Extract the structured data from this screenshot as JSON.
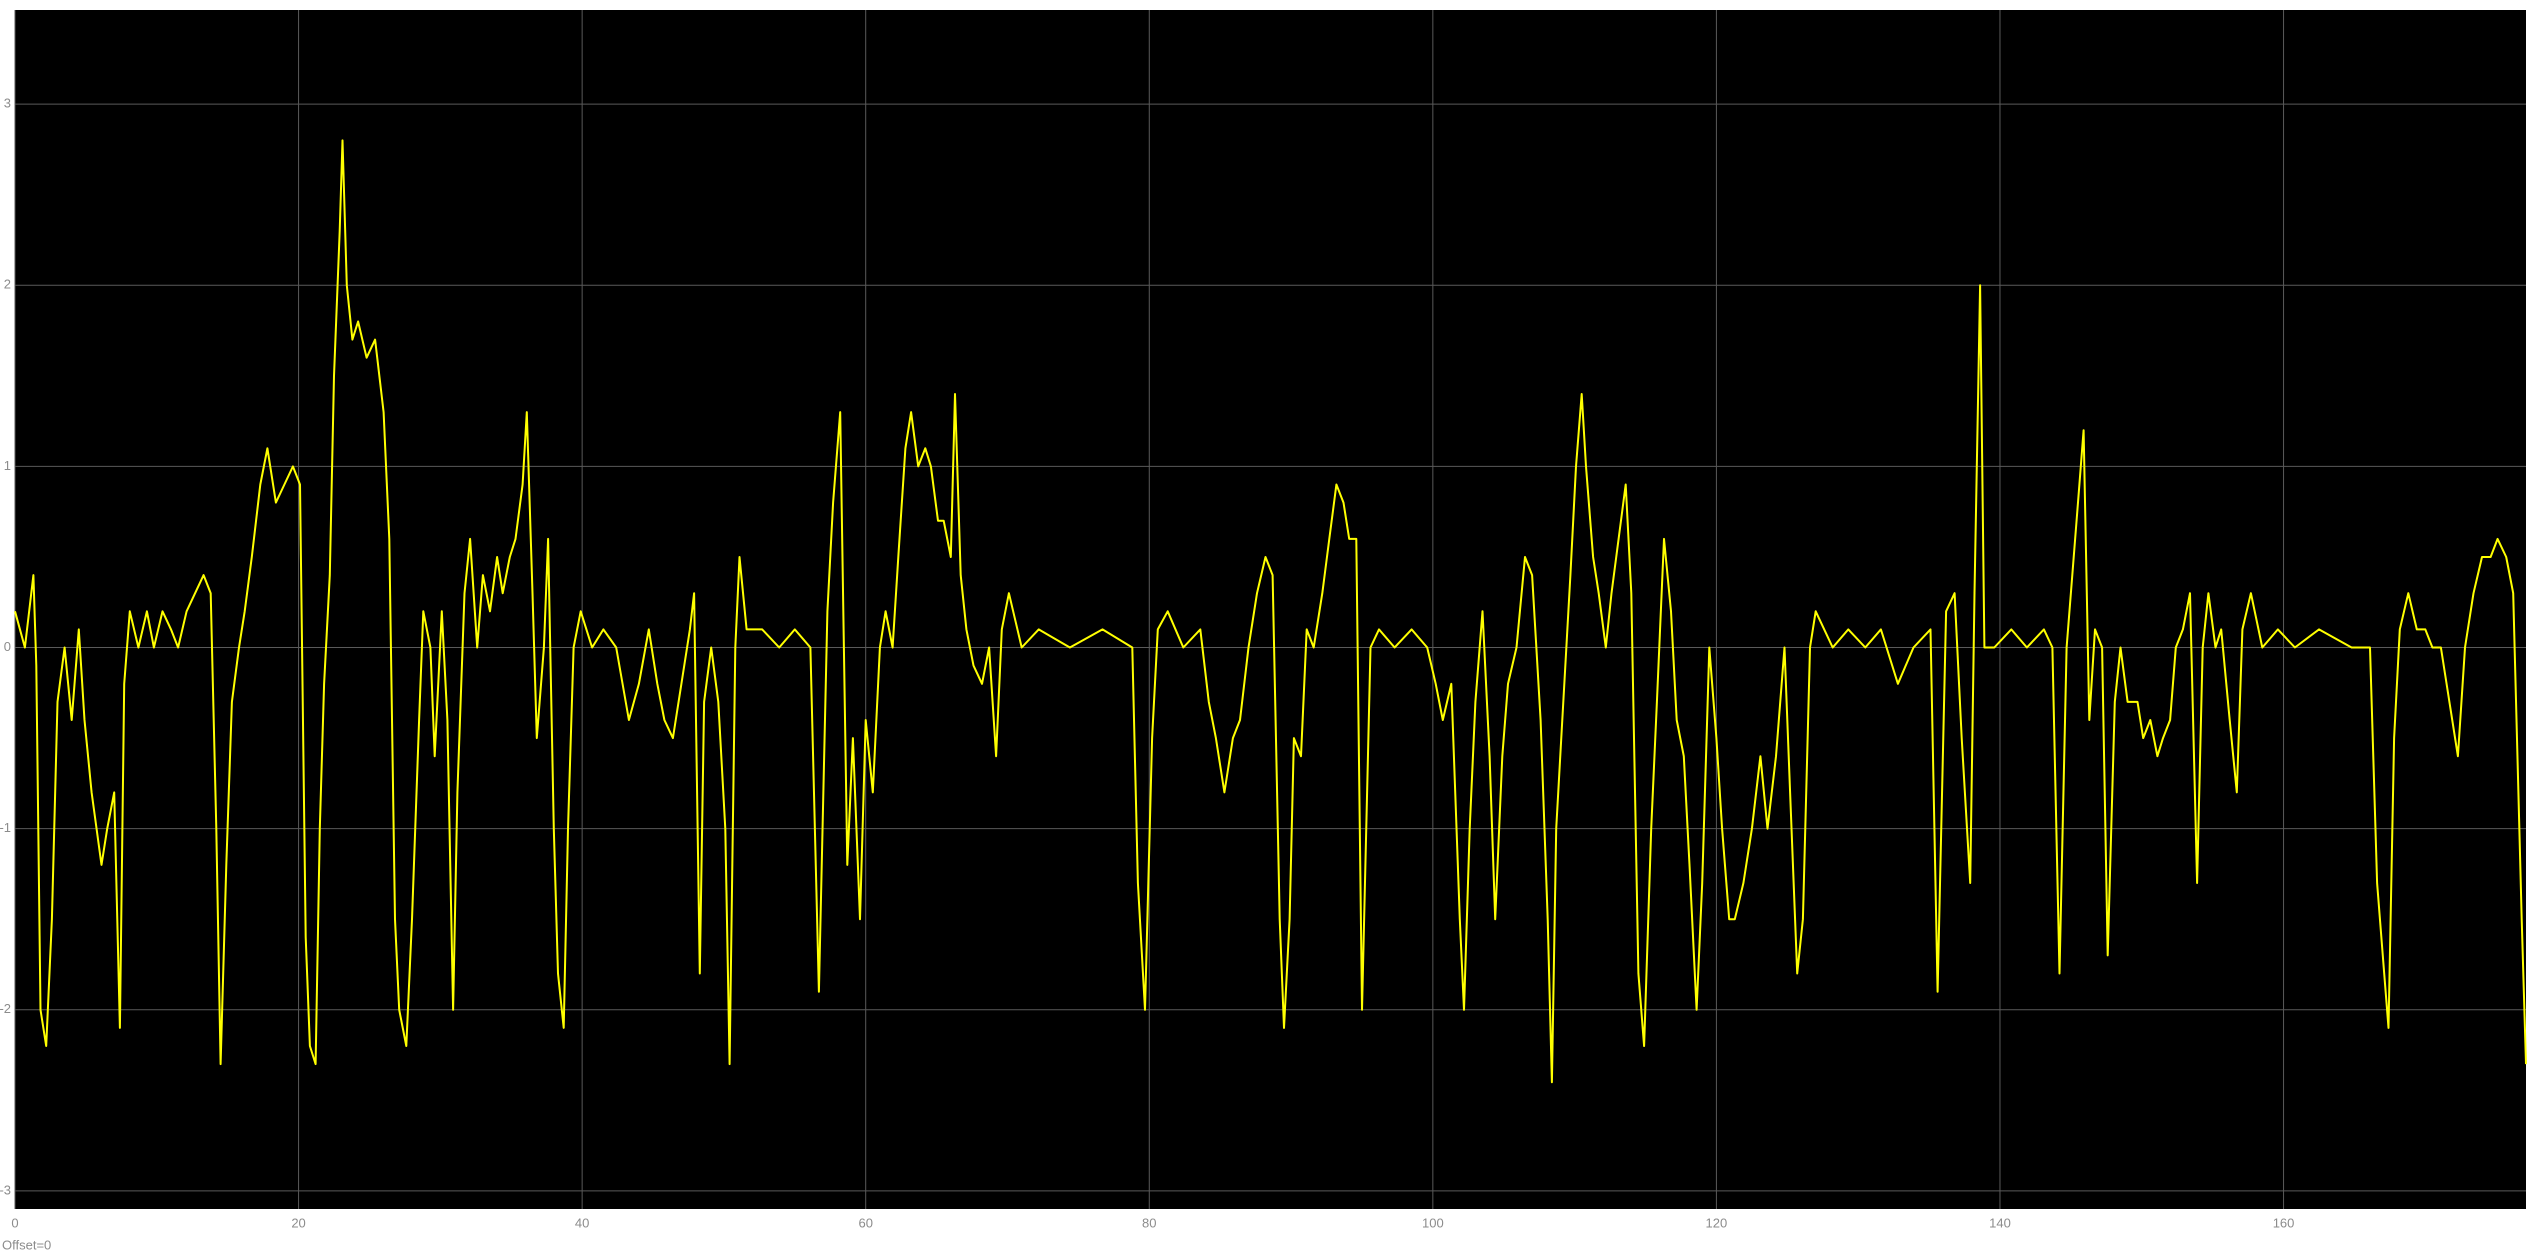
{
  "chart_data": {
    "type": "line",
    "annotation": "Offset=0",
    "color": "#ffff00",
    "grid": true,
    "xlim": [
      0,
      177.1
    ],
    "ylim": [
      -3.1,
      3.52
    ],
    "xticks": [
      0,
      20,
      40,
      60,
      80,
      100,
      120,
      140,
      160
    ],
    "yticks": [
      -3,
      -2,
      -1,
      0,
      1,
      2,
      3
    ],
    "x": [
      0,
      0.7,
      1.3,
      1.5,
      1.8,
      2.2,
      2.6,
      3.0,
      3.5,
      4.0,
      4.5,
      4.9,
      5.4,
      6.1,
      6.5,
      7.0,
      7.4,
      7.7,
      8.1,
      8.7,
      9.3,
      9.8,
      10.4,
      11.0,
      11.5,
      12.1,
      12.7,
      13.3,
      13.8,
      14.2,
      14.5,
      14.9,
      15.3,
      15.8,
      16.2,
      16.7,
      17.3,
      17.8,
      18.4,
      19.0,
      19.6,
      20.1,
      20.5,
      20.8,
      21.2,
      21.5,
      21.8,
      22.2,
      22.5,
      22.9,
      23.1,
      23.4,
      23.8,
      24.2,
      24.8,
      25.4,
      26.0,
      26.4,
      26.8,
      27.1,
      27.6,
      28.0,
      28.5,
      28.8,
      29.3,
      29.6,
      30.1,
      30.5,
      30.9,
      31.2,
      31.7,
      32.1,
      32.6,
      33.0,
      33.5,
      34.0,
      34.4,
      34.9,
      35.3,
      35.8,
      36.1,
      36.5,
      36.8,
      37.3,
      37.6,
      38.0,
      38.3,
      38.7,
      39.0,
      39.4,
      39.9,
      40.7,
      41.5,
      42.4,
      43.3,
      44.0,
      44.7,
      45.3,
      45.8,
      46.4,
      47.0,
      47.6,
      47.9,
      48.3,
      48.6,
      49.1,
      49.6,
      50.1,
      50.4,
      50.8,
      51.1,
      51.6,
      52.7,
      53.9,
      55.0,
      56.1,
      56.7,
      57.3,
      57.7,
      58.2,
      58.7,
      59.1,
      59.6,
      60.0,
      60.5,
      61.0,
      61.4,
      61.9,
      62.3,
      62.8,
      63.2,
      63.7,
      64.2,
      64.6,
      65.1,
      65.5,
      66.0,
      66.3,
      66.7,
      67.1,
      67.6,
      68.2,
      68.7,
      69.2,
      69.6,
      70.1,
      71.0,
      72.2,
      74.4,
      76.7,
      78.8,
      79.2,
      79.7,
      80.2,
      80.6,
      81.3,
      82.4,
      83.6,
      84.2,
      84.7,
      85.3,
      85.9,
      86.4,
      87.0,
      87.6,
      88.2,
      88.7,
      89.2,
      89.5,
      89.9,
      90.2,
      90.7,
      91.1,
      91.6,
      92.2,
      92.7,
      93.2,
      93.7,
      94.1,
      94.6,
      95.0,
      95.6,
      96.2,
      97.3,
      98.5,
      99.6,
      100.2,
      100.7,
      101.3,
      101.9,
      102.2,
      102.6,
      103.0,
      103.5,
      104.0,
      104.4,
      104.9,
      105.3,
      105.9,
      106.5,
      107.0,
      107.6,
      108.1,
      108.4,
      108.7,
      109.2,
      109.7,
      110.1,
      110.5,
      110.8,
      111.3,
      111.7,
      112.2,
      112.6,
      113.1,
      113.6,
      114.0,
      114.5,
      114.9,
      115.4,
      115.8,
      116.3,
      116.8,
      117.2,
      117.7,
      118.1,
      118.6,
      119.0,
      119.5,
      120.0,
      120.4,
      120.9,
      121.3,
      121.9,
      122.5,
      123.1,
      123.6,
      124.2,
      124.8,
      125.2,
      125.7,
      126.1,
      126.6,
      127.0,
      128.2,
      129.3,
      130.5,
      131.6,
      132.8,
      133.9,
      135.1,
      135.6,
      136.2,
      136.8,
      137.3,
      137.9,
      138.2,
      138.6,
      138.9,
      139.6,
      140.8,
      141.9,
      143.1,
      143.7,
      144.2,
      144.7,
      145.1,
      145.6,
      145.9,
      146.3,
      146.7,
      147.2,
      147.6,
      148.1,
      148.5,
      149.0,
      149.7,
      150.1,
      150.6,
      151.1,
      151.5,
      152.0,
      152.4,
      152.9,
      153.4,
      153.9,
      154.3,
      154.7,
      155.2,
      155.6,
      156.2,
      156.7,
      157.1,
      157.7,
      158.5,
      159.6,
      160.8,
      162.5,
      164.8,
      166.1,
      166.6,
      167.1,
      167.4,
      167.8,
      168.2,
      168.8,
      169.4,
      170.0,
      170.5,
      171.1,
      171.7,
      172.3,
      172.8,
      173.4,
      174.0,
      174.6,
      175.1,
      175.7,
      176.2,
      176.8,
      177.1
    ],
    "values": [
      0.2,
      0.0,
      0.4,
      -0.1,
      -2.0,
      -2.2,
      -1.5,
      -0.3,
      0.0,
      -0.4,
      0.1,
      -0.4,
      -0.8,
      -1.2,
      -1.0,
      -0.8,
      -2.1,
      -0.2,
      0.2,
      0.0,
      0.2,
      0.0,
      0.2,
      0.1,
      0.0,
      0.2,
      0.3,
      0.4,
      0.3,
      -1.0,
      -2.3,
      -1.2,
      -0.3,
      0.0,
      0.2,
      0.5,
      0.9,
      1.1,
      0.8,
      0.9,
      1.0,
      0.9,
      -1.6,
      -2.2,
      -2.3,
      -1.0,
      -0.2,
      0.4,
      1.5,
      2.3,
      2.8,
      2.0,
      1.7,
      1.8,
      1.6,
      1.7,
      1.3,
      0.6,
      -1.5,
      -2.0,
      -2.2,
      -1.5,
      -0.4,
      0.2,
      0.0,
      -0.6,
      0.2,
      -0.4,
      -2.0,
      -0.8,
      0.3,
      0.6,
      0.0,
      0.4,
      0.2,
      0.5,
      0.3,
      0.5,
      0.6,
      0.9,
      1.3,
      0.3,
      -0.5,
      0.0,
      0.6,
      -1.0,
      -1.8,
      -2.1,
      -1.0,
      0.0,
      0.2,
      0.0,
      0.1,
      0.0,
      -0.4,
      -0.2,
      0.1,
      -0.2,
      -0.4,
      -0.5,
      -0.2,
      0.1,
      0.3,
      -1.8,
      -0.3,
      0.0,
      -0.3,
      -1.0,
      -2.3,
      0.0,
      0.5,
      0.1,
      0.1,
      0.0,
      0.1,
      0.0,
      -1.9,
      0.2,
      0.8,
      1.3,
      -1.2,
      -0.5,
      -1.5,
      -0.4,
      -0.8,
      0.0,
      0.2,
      0.0,
      0.5,
      1.1,
      1.3,
      1.0,
      1.1,
      1.0,
      0.7,
      0.7,
      0.5,
      1.4,
      0.4,
      0.1,
      -0.1,
      -0.2,
      0.0,
      -0.6,
      0.1,
      0.3,
      0.0,
      0.1,
      0.0,
      0.1,
      0.0,
      -1.3,
      -2.0,
      -0.5,
      0.1,
      0.2,
      0.0,
      0.1,
      -0.3,
      -0.5,
      -0.8,
      -0.5,
      -0.4,
      0.0,
      0.3,
      0.5,
      0.4,
      -1.5,
      -2.1,
      -1.5,
      -0.5,
      -0.6,
      0.1,
      0.0,
      0.3,
      0.6,
      0.9,
      0.8,
      0.6,
      0.6,
      -2.0,
      0.0,
      0.1,
      0.0,
      0.1,
      0.0,
      -0.2,
      -0.4,
      -0.2,
      -1.5,
      -2.0,
      -1.0,
      -0.3,
      0.2,
      -0.6,
      -1.5,
      -0.6,
      -0.2,
      0.0,
      0.5,
      0.4,
      -0.4,
      -1.5,
      -2.4,
      -1.0,
      -0.3,
      0.4,
      1.0,
      1.4,
      1.0,
      0.5,
      0.3,
      0.0,
      0.3,
      0.6,
      0.9,
      0.3,
      -1.8,
      -2.2,
      -1.0,
      -0.3,
      0.6,
      0.2,
      -0.4,
      -0.6,
      -1.2,
      -2.0,
      -1.3,
      0.0,
      -0.5,
      -1.0,
      -1.5,
      -1.5,
      -1.3,
      -1.0,
      -0.6,
      -1.0,
      -0.6,
      0.0,
      -0.8,
      -1.8,
      -1.5,
      0.0,
      0.2,
      0.0,
      0.1,
      0.0,
      0.1,
      -0.2,
      0.0,
      0.1,
      -1.9,
      0.2,
      0.3,
      -0.5,
      -1.3,
      0.3,
      2.0,
      0.0,
      0.0,
      0.1,
      0.0,
      0.1,
      0.0,
      -1.8,
      0.0,
      0.4,
      0.9,
      1.2,
      -0.4,
      0.1,
      0.0,
      -1.7,
      -0.3,
      0.0,
      -0.3,
      -0.3,
      -0.5,
      -0.4,
      -0.6,
      -0.5,
      -0.4,
      0.0,
      0.1,
      0.3,
      -1.3,
      0.0,
      0.3,
      0.0,
      0.1,
      -0.4,
      -0.8,
      0.1,
      0.3,
      0.0,
      0.1,
      0.0,
      0.1,
      0.0,
      0.0,
      -1.3,
      -1.8,
      -2.1,
      -0.5,
      0.1,
      0.3,
      0.1,
      0.1,
      0.0,
      0.0,
      -0.3,
      -0.6,
      0.0,
      0.3,
      0.5,
      0.5,
      0.6,
      0.5,
      0.3,
      -1.5,
      -2.3
    ]
  }
}
